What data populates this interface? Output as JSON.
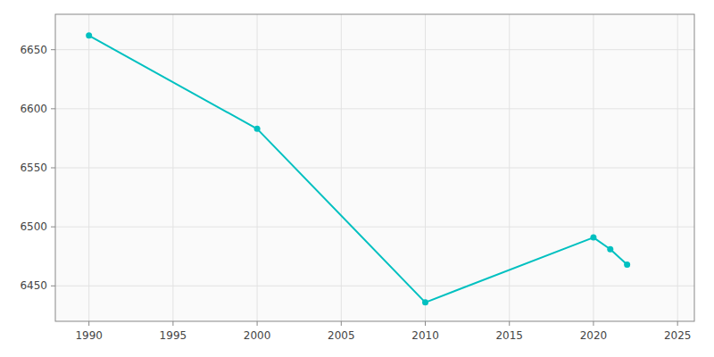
{
  "chart_data": {
    "type": "line",
    "x": [
      1990,
      2000,
      2010,
      2020,
      2021,
      2022
    ],
    "values": [
      6662,
      6583,
      6436,
      6491,
      6481,
      6468
    ],
    "color": "#00C0C0",
    "marker": "circle",
    "xlim": [
      1988,
      2026
    ],
    "ylim": [
      6420,
      6680
    ],
    "xticks": [
      1990,
      1995,
      2000,
      2005,
      2010,
      2015,
      2020,
      2025
    ],
    "yticks": [
      6450,
      6500,
      6550,
      6600,
      6650
    ],
    "grid": true
  }
}
